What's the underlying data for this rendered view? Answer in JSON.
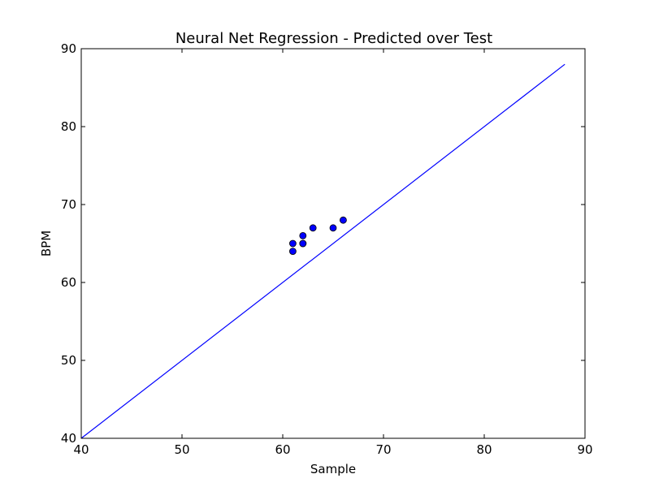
{
  "chart_data": {
    "type": "scatter",
    "title": "Neural Net Regression - Predicted over Test",
    "xlabel": "Sample",
    "ylabel": "BPM",
    "xlim": [
      40,
      90
    ],
    "ylim": [
      40,
      90
    ],
    "xticks": [
      "40",
      "50",
      "60",
      "70",
      "80",
      "90"
    ],
    "yticks": [
      "40",
      "50",
      "60",
      "70",
      "80",
      "90"
    ],
    "grid": false,
    "series": [
      {
        "kind": "points",
        "color": "#0000ff",
        "points": [
          {
            "x": 61,
            "y": 64
          },
          {
            "x": 61,
            "y": 65
          },
          {
            "x": 62,
            "y": 65
          },
          {
            "x": 62,
            "y": 65
          },
          {
            "x": 62,
            "y": 66
          },
          {
            "x": 63,
            "y": 67
          },
          {
            "x": 65,
            "y": 67
          },
          {
            "x": 66,
            "y": 68
          }
        ]
      },
      {
        "kind": "line",
        "color": "#0000ff",
        "x": [
          40,
          88
        ],
        "y": [
          40,
          88
        ]
      }
    ]
  }
}
